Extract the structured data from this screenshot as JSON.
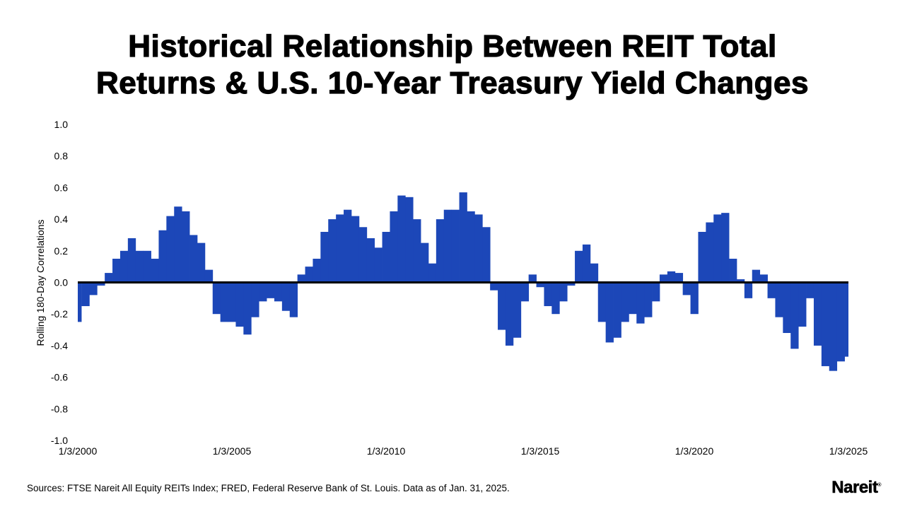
{
  "title": {
    "line1": "Historical Relationship Between REIT Total",
    "line2": "Returns & U.S. 10-Year Treasury Yield Changes"
  },
  "source": "Sources: FTSE Nareit All Equity REITs Index; FRED, Federal Reserve Bank of St. Louis. Data as of Jan. 31, 2025.",
  "logo": "Nareit",
  "chart_data": {
    "type": "area",
    "title": "Historical Relationship Between REIT Total Returns & U.S. 10-Year Treasury Yield Changes",
    "xlabel": "",
    "ylabel": "Rolling 180-Day Correlations",
    "ylim": [
      -1.0,
      1.0
    ],
    "xlim": [
      "2000-01-03",
      "2025-01-03"
    ],
    "grid": false,
    "color": "#1c47b8",
    "zero_line_color": "#000000",
    "y_ticks": [
      "1.0",
      "0.8",
      "0.6",
      "0.4",
      "0.2",
      "0.0",
      "-0.2",
      "-0.4",
      "-0.6",
      "-0.8",
      "-1.0"
    ],
    "x_ticks": [
      "1/3/2000",
      "1/3/2005",
      "1/3/2010",
      "1/3/2015",
      "1/3/2020",
      "1/3/2025"
    ],
    "x": [
      "2000-01",
      "2000-04",
      "2000-07",
      "2000-10",
      "2001-01",
      "2001-04",
      "2001-07",
      "2001-10",
      "2002-01",
      "2002-04",
      "2002-07",
      "2002-10",
      "2003-01",
      "2003-04",
      "2003-07",
      "2003-10",
      "2004-01",
      "2004-04",
      "2004-07",
      "2004-10",
      "2005-01",
      "2005-04",
      "2005-07",
      "2005-10",
      "2006-01",
      "2006-04",
      "2006-07",
      "2006-10",
      "2007-01",
      "2007-04",
      "2007-07",
      "2007-10",
      "2008-01",
      "2008-04",
      "2008-07",
      "2008-10",
      "2009-01",
      "2009-04",
      "2009-07",
      "2009-10",
      "2010-01",
      "2010-04",
      "2010-07",
      "2010-10",
      "2011-01",
      "2011-04",
      "2011-07",
      "2011-10",
      "2012-01",
      "2012-04",
      "2012-07",
      "2012-10",
      "2013-01",
      "2013-04",
      "2013-07",
      "2013-10",
      "2014-01",
      "2014-04",
      "2014-07",
      "2014-10",
      "2015-01",
      "2015-04",
      "2015-07",
      "2015-10",
      "2016-01",
      "2016-04",
      "2016-07",
      "2016-10",
      "2017-01",
      "2017-04",
      "2017-07",
      "2017-10",
      "2018-01",
      "2018-04",
      "2018-07",
      "2018-10",
      "2019-01",
      "2019-04",
      "2019-07",
      "2019-10",
      "2020-01",
      "2020-04",
      "2020-07",
      "2020-10",
      "2021-01",
      "2021-04",
      "2021-07",
      "2021-10",
      "2022-01",
      "2022-04",
      "2022-07",
      "2022-10",
      "2023-01",
      "2023-04",
      "2023-07",
      "2023-10",
      "2024-01",
      "2024-04",
      "2024-07",
      "2024-10",
      "2025-01"
    ],
    "values": [
      -0.25,
      -0.15,
      -0.08,
      -0.02,
      0.06,
      0.15,
      0.2,
      0.28,
      0.2,
      0.2,
      0.15,
      0.33,
      0.42,
      0.48,
      0.45,
      0.3,
      0.25,
      0.08,
      -0.2,
      -0.25,
      -0.25,
      -0.28,
      -0.33,
      -0.22,
      -0.12,
      -0.1,
      -0.12,
      -0.18,
      -0.22,
      0.05,
      0.1,
      0.15,
      0.32,
      0.4,
      0.43,
      0.46,
      0.42,
      0.35,
      0.28,
      0.22,
      0.32,
      0.45,
      0.55,
      0.54,
      0.4,
      0.25,
      0.12,
      0.4,
      0.46,
      0.46,
      0.57,
      0.45,
      0.43,
      0.35,
      -0.05,
      -0.3,
      -0.4,
      -0.35,
      -0.12,
      0.05,
      -0.03,
      -0.15,
      -0.2,
      -0.12,
      -0.02,
      0.2,
      0.24,
      0.12,
      -0.25,
      -0.38,
      -0.35,
      -0.25,
      -0.2,
      -0.26,
      -0.22,
      -0.12,
      0.05,
      0.07,
      0.06,
      -0.08,
      -0.2,
      0.32,
      0.38,
      0.43,
      0.44,
      0.15,
      0.02,
      -0.1,
      0.08,
      0.05,
      -0.1,
      -0.22,
      -0.32,
      -0.42,
      -0.28,
      -0.1,
      -0.4,
      -0.53,
      -0.56,
      -0.5,
      -0.47
    ]
  }
}
